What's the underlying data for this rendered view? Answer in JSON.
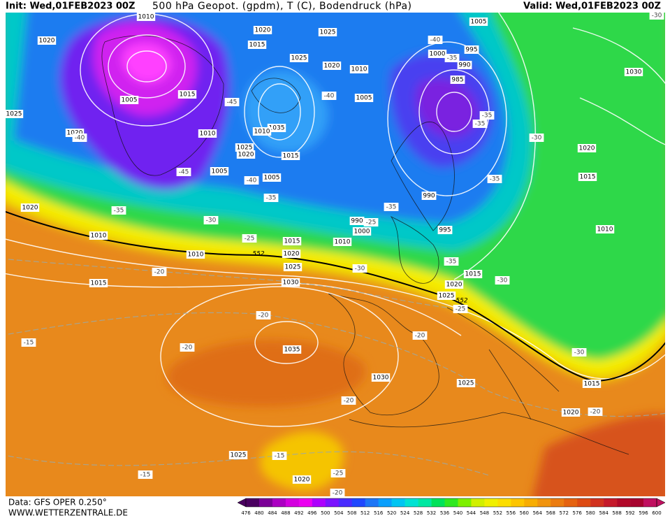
{
  "header": {
    "init": "Init: Wed,01FEB2023 00Z",
    "title": "500 hPa Geopot. (gpdm), T (C), Bodendruck (hPa)",
    "valid": "Valid: Wed,01FEB2023 00Z"
  },
  "footer": {
    "source": "Data: GFS OPER 0.250°",
    "website": "WWW.WETTERZENTRALE.DE"
  },
  "colorbar": {
    "labels": [
      476,
      480,
      484,
      488,
      492,
      496,
      500,
      504,
      508,
      512,
      516,
      520,
      524,
      528,
      532,
      536,
      540,
      544,
      548,
      552,
      556,
      560,
      564,
      568,
      572,
      576,
      580,
      584,
      588,
      592,
      596,
      600
    ]
  },
  "pressure_labels": [
    "1010",
    "1020",
    "1025",
    "1005",
    "1020",
    "1015",
    "1025",
    "1000",
    "995",
    "1020",
    "1010",
    "990",
    "985",
    "1030",
    "1015",
    "1005",
    "1005",
    "1025",
    "1020",
    "1010",
    "1035",
    "1010",
    "1025",
    "1020",
    "1015",
    "1020",
    "1005",
    "1005",
    "1015",
    "990",
    "1020",
    "990",
    "1000",
    "995",
    "1010",
    "1010",
    "1010",
    "1015",
    "1010",
    "1020",
    "1025",
    "1015",
    "1015",
    "1030",
    "1020",
    "1025",
    "1035",
    "1030",
    "1025",
    "1015",
    "1020",
    "1025",
    "1020"
  ],
  "temperature_labels": [
    "-30",
    "-40",
    "-35",
    "-45",
    "-40",
    "-35",
    "-35",
    "-40",
    "-30",
    "-45",
    "-40",
    "-35",
    "-35",
    "-35",
    "-30",
    "-35",
    "-25",
    "-25",
    "-35",
    "-30",
    "-20",
    "-30",
    "-25",
    "-20",
    "-15",
    "-20",
    "-20",
    "-30",
    "-20",
    "-20",
    "-15",
    "-25",
    "-15",
    "-20"
  ],
  "height_labels": [
    "552",
    "552"
  ]
}
